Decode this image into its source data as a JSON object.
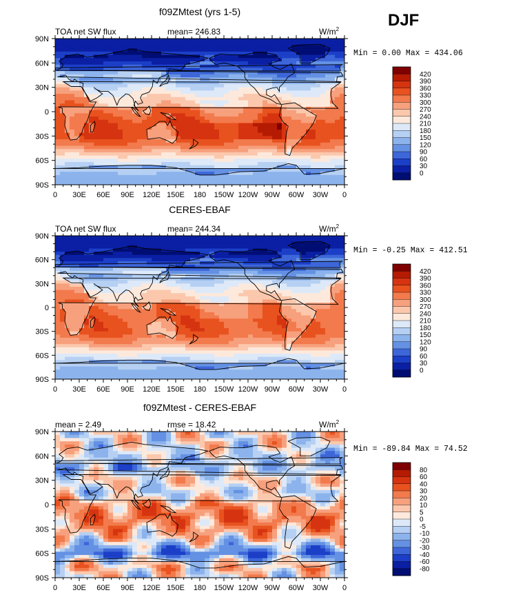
{
  "season": "DJF",
  "units": {
    "base": "W/m",
    "sup": "2"
  },
  "chart_data": [
    {
      "type": "contour-map",
      "title": "f09ZMtest (yrs 1-5)",
      "left_label": "TOA net SW flux",
      "center_label": "mean= 246.83",
      "minmax_label": "Min =   0.00 Max = 434.06",
      "x_ticks": [
        "0",
        "30E",
        "60E",
        "90E",
        "120E",
        "150E",
        "180",
        "150W",
        "120W",
        "90W",
        "60W",
        "30W",
        "0"
      ],
      "y_ticks": [
        "90N",
        "60N",
        "30N",
        "0",
        "30S",
        "60S",
        "90S"
      ],
      "colorbar_levels": [
        "420",
        "390",
        "360",
        "330",
        "300",
        "270",
        "240",
        "210",
        "180",
        "150",
        "120",
        "90",
        "60",
        "30",
        "0"
      ],
      "colorbar_colors": [
        "#7f0000",
        "#b51b02",
        "#d63411",
        "#e8521f",
        "#f27a4c",
        "#f7a07d",
        "#fbc8ad",
        "#fde9dc",
        "#dde9f8",
        "#b6d0f3",
        "#8cb3ec",
        "#6491e3",
        "#3d66d9",
        "#1c3fc7",
        "#0a1fa3",
        "#000d73"
      ],
      "lat_profile_wm2": [
        [
          90,
          10
        ],
        [
          75,
          25
        ],
        [
          60,
          90
        ],
        [
          45,
          160
        ],
        [
          30,
          250
        ],
        [
          15,
          300
        ],
        [
          0,
          330
        ],
        [
          -15,
          360
        ],
        [
          -30,
          360
        ],
        [
          -45,
          300
        ],
        [
          -60,
          200
        ],
        [
          -75,
          150
        ],
        [
          -90,
          130
        ]
      ]
    },
    {
      "type": "contour-map",
      "title": "CERES-EBAF",
      "left_label": "TOA net SW flux",
      "center_label": "mean= 244.34",
      "minmax_label": "Min =  -0.25 Max = 412.51",
      "x_ticks": [
        "0",
        "30E",
        "60E",
        "90E",
        "120E",
        "150E",
        "180",
        "150W",
        "120W",
        "90W",
        "60W",
        "30W",
        "0"
      ],
      "y_ticks": [
        "90N",
        "60N",
        "30N",
        "0",
        "30S",
        "60S",
        "90S"
      ],
      "colorbar_levels": [
        "420",
        "390",
        "360",
        "330",
        "300",
        "270",
        "240",
        "210",
        "180",
        "150",
        "120",
        "90",
        "60",
        "30",
        "0"
      ],
      "colorbar_colors": [
        "#7f0000",
        "#b51b02",
        "#d63411",
        "#e8521f",
        "#f27a4c",
        "#f7a07d",
        "#fbc8ad",
        "#fde9dc",
        "#dde9f8",
        "#b6d0f3",
        "#8cb3ec",
        "#6491e3",
        "#3d66d9",
        "#1c3fc7",
        "#0a1fa3",
        "#000d73"
      ],
      "lat_profile_wm2": [
        [
          90,
          5
        ],
        [
          75,
          20
        ],
        [
          60,
          90
        ],
        [
          45,
          170
        ],
        [
          30,
          250
        ],
        [
          15,
          300
        ],
        [
          0,
          320
        ],
        [
          -15,
          340
        ],
        [
          -30,
          340
        ],
        [
          -45,
          290
        ],
        [
          -60,
          200
        ],
        [
          -75,
          150
        ],
        [
          -90,
          130
        ]
      ]
    },
    {
      "type": "contour-map",
      "title": "f09ZMtest - CERES-EBAF",
      "left_label": "mean =    2.49",
      "center_label": "rmse =   18.42",
      "minmax_label": "Min = -89.84 Max =  74.52",
      "x_ticks": [
        "0",
        "30E",
        "60E",
        "90E",
        "120E",
        "150E",
        "180",
        "150W",
        "120W",
        "90W",
        "60W",
        "30W",
        "0"
      ],
      "y_ticks": [
        "90N",
        "60N",
        "30N",
        "0",
        "30S",
        "60S",
        "90S"
      ],
      "colorbar_levels": [
        "80",
        "60",
        "40",
        "30",
        "20",
        "10",
        "5",
        "0",
        "-5",
        "-10",
        "-20",
        "-30",
        "-40",
        "-60",
        "-80"
      ],
      "colorbar_colors": [
        "#7f0000",
        "#b51b02",
        "#d63411",
        "#e8521f",
        "#f27a4c",
        "#f7a07d",
        "#fbc8ad",
        "#fde9dc",
        "#dde9f8",
        "#b6d0f3",
        "#8cb3ec",
        "#6491e3",
        "#3d66d9",
        "#1c3fc7",
        "#0a1fa3",
        "#000d73"
      ],
      "lat_profile_wm2": [
        [
          90,
          0
        ],
        [
          75,
          2
        ],
        [
          60,
          -10
        ],
        [
          45,
          -20
        ],
        [
          30,
          10
        ],
        [
          15,
          -10
        ],
        [
          0,
          20
        ],
        [
          -15,
          30
        ],
        [
          -30,
          20
        ],
        [
          -45,
          0
        ],
        [
          -60,
          -30
        ],
        [
          -75,
          10
        ],
        [
          -90,
          0
        ]
      ]
    }
  ]
}
